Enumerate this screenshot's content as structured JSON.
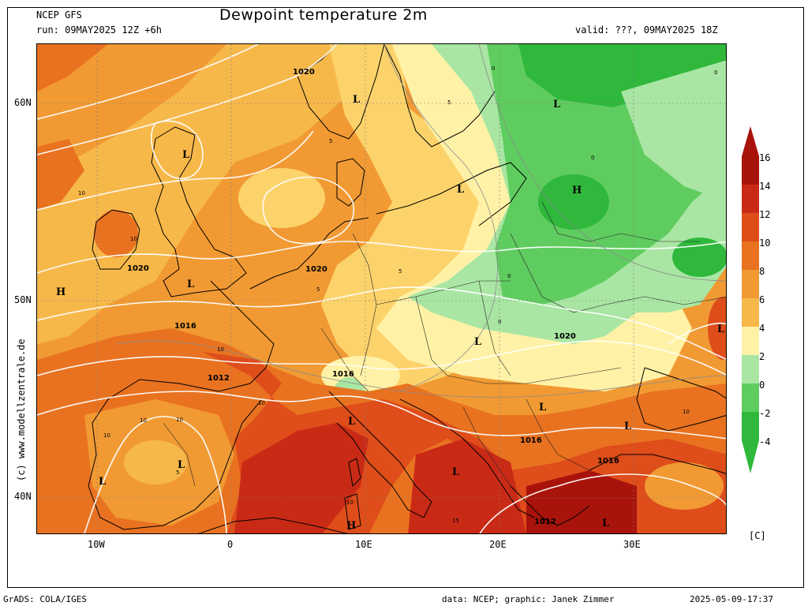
{
  "header": {
    "model": "NCEP GFS",
    "run": "run: 09MAY2025 12Z +6h",
    "title": "Dewpoint temperature 2m",
    "valid": "valid: ???, 09MAY2025 18Z"
  },
  "map": {
    "lat_ticks": [
      "60N",
      "50N",
      "40N"
    ],
    "lon_ticks": [
      "10W",
      "0",
      "10E",
      "20E",
      "30E"
    ],
    "pressure_labels": [
      "1020",
      "1020",
      "1020",
      "1016",
      "1016",
      "1012",
      "1020",
      "1016",
      "1016",
      "1012"
    ],
    "dewpoint_labels": [
      "10",
      "10",
      "10",
      "10",
      "10",
      "10",
      "10",
      "10",
      "10",
      "5",
      "5",
      "5",
      "5",
      "5",
      "0",
      "0",
      "0",
      "0",
      "0",
      "15"
    ],
    "pressure_centers": [
      "L",
      "L",
      "L",
      "L",
      "L",
      "L",
      "L",
      "L",
      "L",
      "L",
      "L",
      "L",
      "L",
      "L",
      "H",
      "H",
      "H"
    ],
    "colors": {
      "deep_green": "#2fb83c",
      "green": "#5fcc5f",
      "light_green": "#a9e6a3",
      "pale_yellow": "#fff2a6",
      "yellow_orange": "#fcd36b",
      "orange_light": "#f7b84a",
      "orange": "#f19a33",
      "dark_orange": "#e97220",
      "red_orange": "#de4d1a",
      "red": "#c92a16",
      "dark_red": "#a8140c"
    }
  },
  "legend": {
    "ticks": [
      "16",
      "14",
      "12",
      "10",
      "8",
      "6",
      "4",
      "2",
      "0",
      "-2",
      "-4"
    ],
    "unit": "[C]",
    "colors": [
      "#a8140c",
      "#c92a16",
      "#de4d1a",
      "#e97220",
      "#f19a33",
      "#f7b84a",
      "#fcd36b",
      "#fff2a6",
      "#a9e6a3",
      "#5fcc5f",
      "#2fb83c"
    ]
  },
  "credits": {
    "side": "(c) www.modellzentrale.de",
    "grads": "GrADS: COLA/IGES",
    "data": "data: NCEP; graphic: Janek Zimmer",
    "timestamp": "2025-05-09-17:37"
  }
}
